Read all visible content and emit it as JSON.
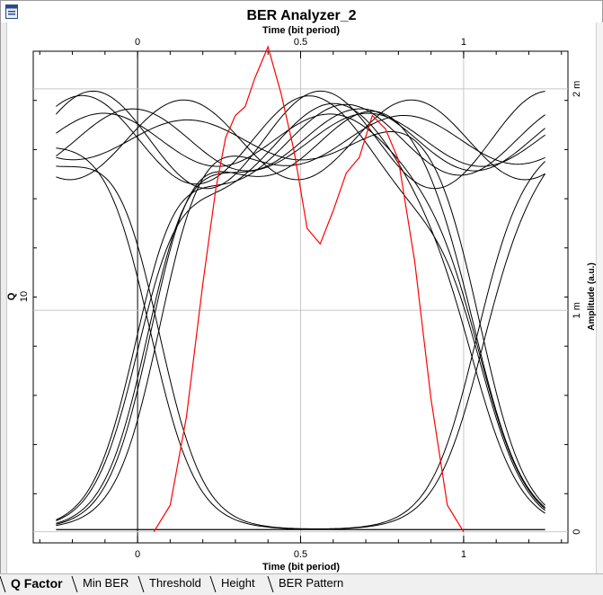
{
  "window": {
    "title": "BER Analyzer_2"
  },
  "chart_data": {
    "type": "line",
    "title": "BER Analyzer_2",
    "x_top_label": "Time (bit period)",
    "x_bottom_label": "Time (bit period)",
    "y_left_label": "Q",
    "y_right_label": "Amplitude (a.u.)",
    "xlim": [
      -0.32,
      1.32
    ],
    "x_ticks": [
      0,
      0.5,
      1
    ],
    "x_tick_labels": [
      "0",
      "0.5",
      "1"
    ],
    "y_left_tick": "10",
    "y_right_ticks": [
      0,
      0.001,
      0.002
    ],
    "y_right_tick_labels": [
      "0",
      "1 m",
      "2 m"
    ],
    "ylim_right": [
      -5e-05,
      0.00217
    ],
    "grid": true,
    "q_factor_series": {
      "name": "Q Factor",
      "color": "#ff0000",
      "x": [
        0.05,
        0.1,
        0.15,
        0.2,
        0.24,
        0.27,
        0.3,
        0.33,
        0.36,
        0.4,
        0.44,
        0.48,
        0.52,
        0.56,
        0.6,
        0.64,
        0.68,
        0.72,
        0.76,
        0.8,
        0.85,
        0.9,
        0.95,
        1.0
      ],
      "q_amp": [
        0.0,
        0.00012,
        0.00052,
        0.00112,
        0.00155,
        0.00178,
        0.00188,
        0.00192,
        0.00205,
        0.00219,
        0.00198,
        0.00172,
        0.00137,
        0.0013,
        0.00145,
        0.00162,
        0.00169,
        0.00188,
        0.00182,
        0.00168,
        0.00122,
        0.0006,
        0.00012,
        0.0
      ]
    },
    "eye_diagram": {
      "color": "#000000",
      "one_level": 0.00177,
      "zero_level": 1e-05
    }
  },
  "tabs": [
    {
      "label": "Q Factor",
      "active": true
    },
    {
      "label": "Min BER",
      "active": false
    },
    {
      "label": "Threshold",
      "active": false
    },
    {
      "label": "Height",
      "active": false
    },
    {
      "label": "BER Pattern",
      "active": false
    }
  ]
}
